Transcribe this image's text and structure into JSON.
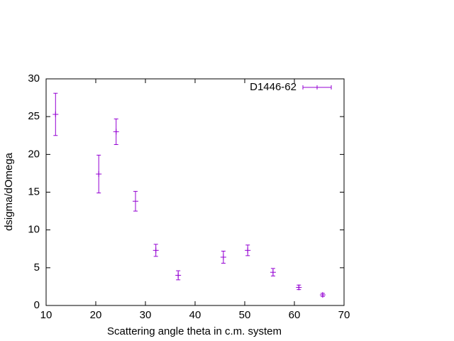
{
  "chart_data": {
    "type": "errorbar",
    "xlabel": "Scattering angle theta in c.m. system",
    "ylabel": "dsigma/dOmega",
    "xlim": [
      10,
      70
    ],
    "xticks": [
      10,
      20,
      30,
      40,
      50,
      60,
      70
    ],
    "ylim": [
      0,
      30
    ],
    "yticks": [
      0,
      5,
      10,
      15,
      20,
      25,
      30
    ],
    "legend": "top-right",
    "series": [
      {
        "name": "D1446-62",
        "color": "#9400d3",
        "x": [
          11.9,
          20.6,
          24.1,
          28.0,
          32.1,
          36.6,
          45.7,
          50.6,
          55.7,
          60.9,
          65.7
        ],
        "values": [
          25.3,
          17.4,
          23.0,
          13.8,
          7.3,
          4.0,
          6.4,
          7.3,
          4.4,
          2.4,
          1.4
        ],
        "errors": [
          2.8,
          2.5,
          1.7,
          1.3,
          0.8,
          0.6,
          0.8,
          0.7,
          0.5,
          0.3,
          0.2
        ]
      }
    ]
  }
}
